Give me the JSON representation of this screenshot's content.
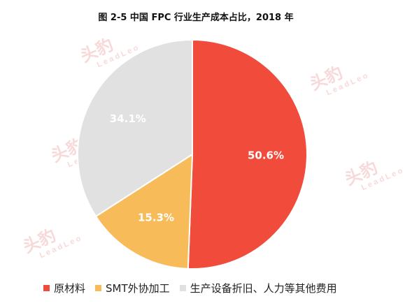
{
  "title": "图 2-5  中国 FPC 行业生产成本占比，2018 年",
  "watermark": {
    "main": "头豹",
    "sub": "LeadLeo"
  },
  "chart_data": {
    "type": "pie",
    "title": "图 2-5  中国 FPC 行业生产成本占比，2018 年",
    "start_angle_deg": 0,
    "direction": "clockwise",
    "legend_position": "bottom",
    "slices": [
      {
        "label": "原材料",
        "value": 50.6,
        "display": "50.6%",
        "color": "#f14b3b"
      },
      {
        "label": "SMT外协加工",
        "value": 15.3,
        "display": "15.3%",
        "color": "#f7bb59"
      },
      {
        "label": "生产设备折旧、人力等其他费用",
        "value": 34.1,
        "display": "34.1%",
        "color": "#e1e1e1"
      }
    ]
  }
}
